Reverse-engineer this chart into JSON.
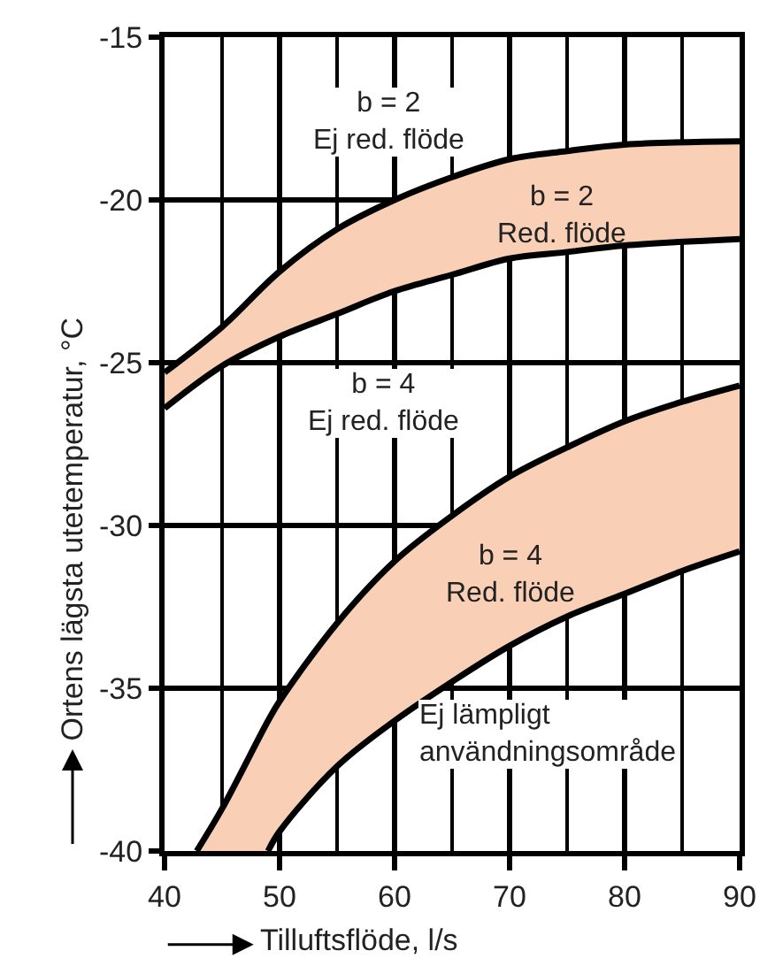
{
  "chart_data": {
    "type": "line",
    "xlabel": "Tilluftsflöde, l/s",
    "ylabel": "Ortens lägsta utetemperatur, °C",
    "xlim": [
      40,
      90
    ],
    "xticks": [
      40,
      50,
      60,
      70,
      80,
      90
    ],
    "ylim": [
      -40,
      -15
    ],
    "yticks": [
      -40,
      -35,
      -30,
      -25,
      -20,
      -15
    ],
    "grid": true,
    "marker": "none",
    "line_style": "solid",
    "colors": [
      "#f9d0b6",
      "#f9d0b6"
    ],
    "series": [
      {
        "color": "#000000",
        "x": [
          40,
          45,
          50,
          55,
          60,
          65,
          70,
          75,
          80,
          90
        ],
        "values": [
          -25.3,
          -23.9,
          -22.2,
          -20.9,
          -20.0,
          -19.3,
          -18.75,
          -18.5,
          -18.3,
          -18.2
        ],
        "upper": [
          -25.3,
          -23.9,
          -22.2,
          -20.9,
          -20.0,
          -19.3,
          -18.75,
          -18.5,
          -18.3,
          -18.2
        ],
        "lower": [
          -26.4,
          -25.1,
          -24.2,
          -23.5,
          -22.8,
          -22.3,
          -21.8,
          -21.6,
          -21.4,
          -21.2
        ]
      },
      {
        "color": "#000000",
        "x": [
          42.8,
          45,
          49,
          50,
          55,
          60,
          65,
          70,
          75,
          80,
          85,
          90
        ],
        "values": [
          -40,
          -38.7,
          -36.0,
          -35.4,
          -33.0,
          -31.1,
          -29.7,
          -28.5,
          -27.6,
          -26.8,
          -26.2,
          -25.7
        ],
        "upper": [
          -40,
          -38.7,
          -36.0,
          -35.4,
          -33.0,
          -31.1,
          -29.7,
          -28.5,
          -27.6,
          -26.8,
          -26.2,
          -25.7
        ],
        "lower": [
          -40,
          -40,
          -40,
          -39.4,
          -37.4,
          -36.0,
          -34.8,
          -33.7,
          -32.8,
          -32.1,
          -31.4,
          -30.8
        ]
      },
      {
        "color": "#000000",
        "x": [
          40,
          45,
          50,
          55,
          60,
          65,
          70,
          75,
          80,
          90
        ],
        "values": [
          -26.4,
          -25.1,
          -24.2,
          -23.5,
          -22.8,
          -22.3,
          -21.8,
          -21.6,
          -21.4,
          -21.2
        ]
      },
      {
        "color": "#000000",
        "x": [
          49,
          50,
          55,
          60,
          65,
          70,
          75,
          80,
          85,
          90
        ],
        "values": [
          -40,
          -39.4,
          -37.4,
          -36.0,
          -34.8,
          -33.7,
          -32.8,
          -32.1,
          -31.4,
          -30.8
        ]
      }
    ],
    "annotations": [
      "b = 2\nEj red. flöde",
      "b = 2\nRed. flöde",
      "b = 4\nEj red. flöde",
      "b = 4\nRed. flöde",
      "Ej lämpligt\nanvändningsområde"
    ]
  }
}
